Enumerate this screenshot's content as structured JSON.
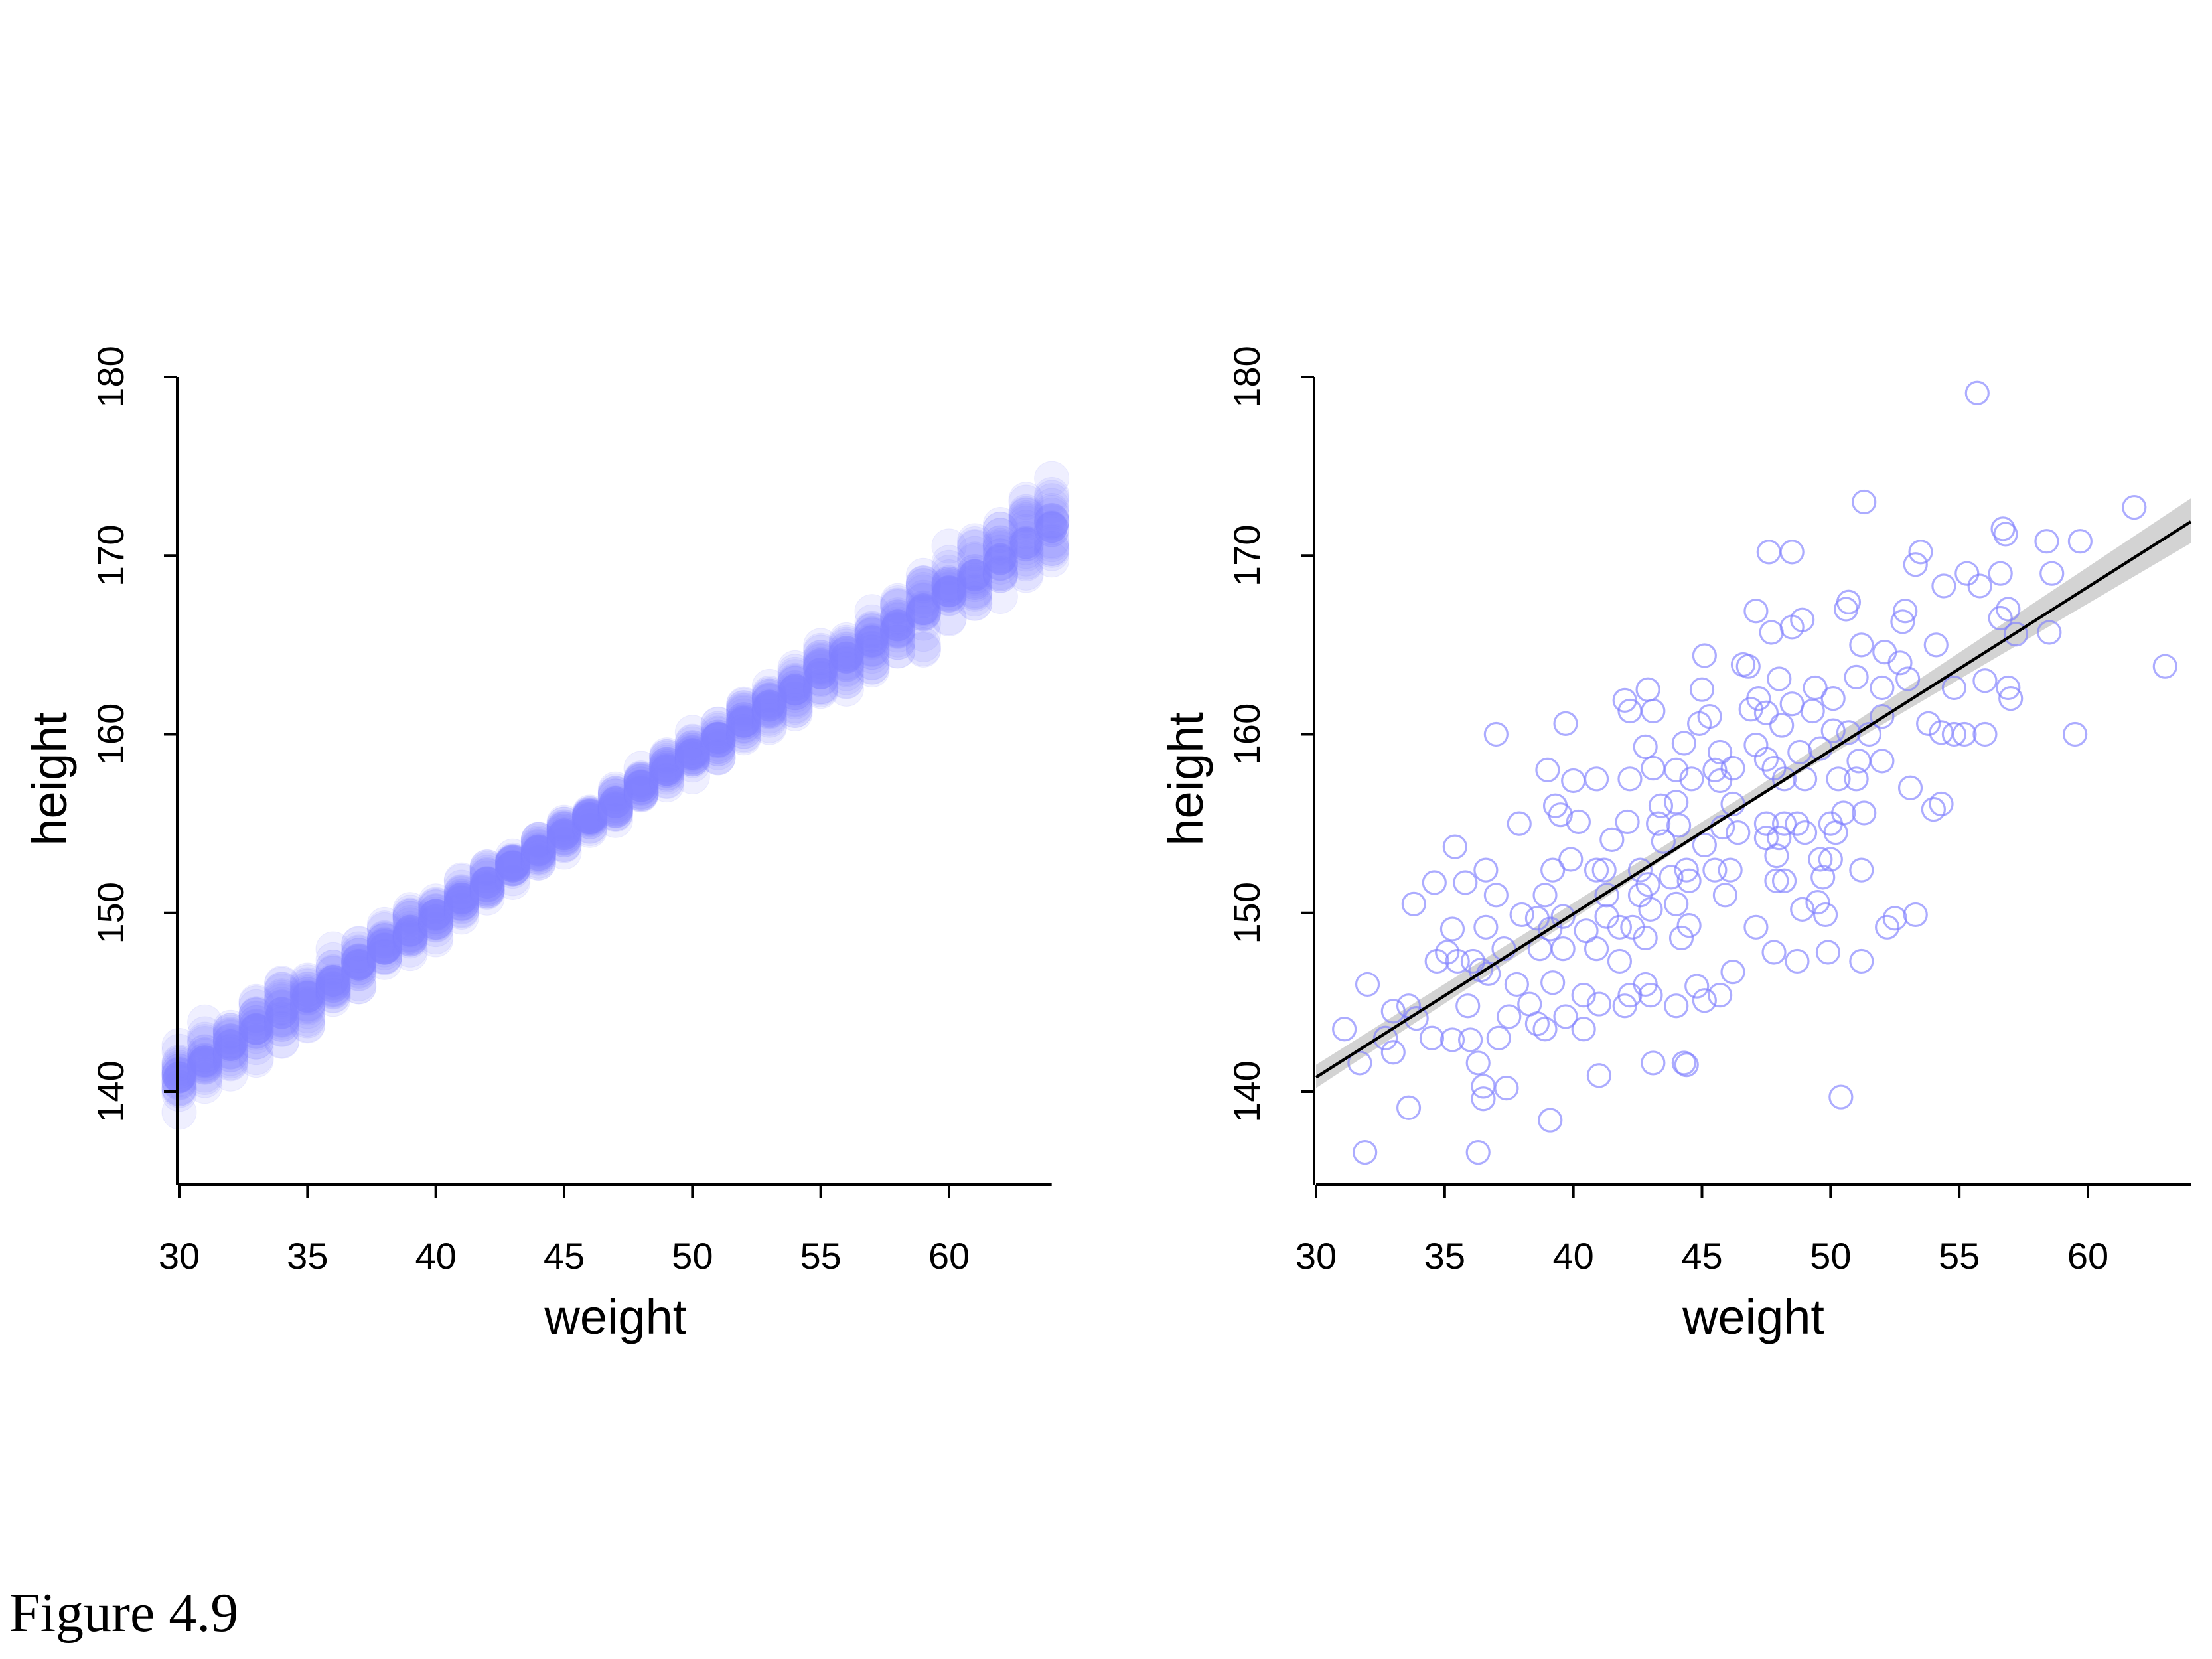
{
  "caption": "Figure 4.9",
  "chart_data": [
    {
      "type": "scatter",
      "variant": "posterior-mean-distribution",
      "xlabel": "weight",
      "ylabel": "height",
      "xlim": [
        30,
        64
      ],
      "ylim": [
        135,
        181
      ],
      "xticks": [
        30,
        35,
        40,
        45,
        50,
        55,
        60
      ],
      "yticks": [
        140,
        150,
        160,
        170,
        180
      ],
      "marker_color": "#8080ff",
      "marker_style": "filled translucent circles",
      "weights": [
        30,
        31,
        32,
        33,
        34,
        35,
        36,
        37,
        38,
        39,
        40,
        41,
        42,
        43,
        44,
        45,
        46,
        47,
        48,
        49,
        50,
        51,
        52,
        53,
        54,
        55,
        56,
        57,
        58,
        59,
        60,
        61,
        62,
        63,
        64
      ],
      "mean_height": [
        140.8,
        141.7,
        142.6,
        143.5,
        144.4,
        145.3,
        146.2,
        147.1,
        148.0,
        149.0,
        149.9,
        150.8,
        151.7,
        152.6,
        153.5,
        154.4,
        155.3,
        156.2,
        157.1,
        158.0,
        158.9,
        159.8,
        160.7,
        161.6,
        162.5,
        163.4,
        164.3,
        165.2,
        166.1,
        167.0,
        168.0,
        168.9,
        169.8,
        170.7,
        171.6
      ],
      "spread": [
        1.5,
        1.4,
        1.3,
        1.2,
        1.1,
        1.0,
        0.95,
        0.9,
        0.8,
        0.75,
        0.7,
        0.65,
        0.6,
        0.55,
        0.55,
        0.55,
        0.55,
        0.6,
        0.6,
        0.65,
        0.7,
        0.75,
        0.8,
        0.85,
        0.9,
        1.0,
        1.05,
        1.1,
        1.2,
        1.3,
        1.4,
        1.5,
        1.6,
        1.7,
        1.8
      ]
    },
    {
      "type": "scatter",
      "variant": "raw-data-with-regression-line",
      "xlabel": "weight",
      "ylabel": "height",
      "xlim": [
        30,
        64
      ],
      "ylim": [
        135,
        181
      ],
      "xticks": [
        30,
        35,
        40,
        45,
        50,
        55,
        60
      ],
      "yticks": [
        140,
        150,
        160,
        170,
        180
      ],
      "marker_color": "#8080ff",
      "marker_style": "open circles",
      "line": {
        "x": [
          30,
          64
        ],
        "y": [
          140.8,
          171.9
        ],
        "color": "#000000"
      },
      "band": {
        "color": "#d3d3d3",
        "x": [
          30,
          47,
          64
        ],
        "lower": [
          140.2,
          156.3,
          170.7
        ],
        "upper": [
          141.5,
          156.9,
          173.2
        ]
      },
      "points": [
        [
          55.7,
          179.1
        ],
        [
          51.3,
          173.0
        ],
        [
          61.8,
          172.7
        ],
        [
          56.8,
          171.2
        ],
        [
          56.7,
          171.5
        ],
        [
          59.7,
          170.8
        ],
        [
          58.4,
          170.8
        ],
        [
          47.6,
          170.2
        ],
        [
          48.5,
          170.2
        ],
        [
          53.5,
          170.2
        ],
        [
          53.3,
          169.5
        ],
        [
          56.6,
          169.0
        ],
        [
          55.3,
          169.0
        ],
        [
          58.6,
          169.0
        ],
        [
          54.4,
          168.3
        ],
        [
          55.8,
          168.3
        ],
        [
          56.6,
          166.5
        ],
        [
          56.9,
          167.0
        ],
        [
          50.7,
          167.4
        ],
        [
          50.6,
          167.0
        ],
        [
          52.9,
          166.9
        ],
        [
          47.1,
          166.9
        ],
        [
          48.9,
          166.4
        ],
        [
          48.5,
          166.0
        ],
        [
          52.8,
          166.3
        ],
        [
          47.7,
          165.7
        ],
        [
          57.2,
          165.6
        ],
        [
          58.5,
          165.7
        ],
        [
          51.2,
          165.0
        ],
        [
          54.1,
          165.0
        ],
        [
          52.1,
          164.6
        ],
        [
          45.1,
          164.4
        ],
        [
          46.6,
          163.9
        ],
        [
          46.8,
          163.8
        ],
        [
          52.7,
          164.0
        ],
        [
          53.0,
          163.1
        ],
        [
          48.0,
          163.1
        ],
        [
          51.0,
          163.2
        ],
        [
          56.0,
          163.0
        ],
        [
          63.0,
          163.8
        ],
        [
          56.9,
          162.6
        ],
        [
          54.8,
          162.6
        ],
        [
          52.0,
          162.6
        ],
        [
          49.4,
          162.6
        ],
        [
          45.0,
          162.5
        ],
        [
          42.9,
          162.5
        ],
        [
          47.2,
          162.0
        ],
        [
          50.1,
          162.0
        ],
        [
          48.5,
          161.7
        ],
        [
          42.0,
          161.9
        ],
        [
          57.0,
          162.0
        ],
        [
          52.0,
          161.0
        ],
        [
          46.9,
          161.4
        ],
        [
          42.2,
          161.3
        ],
        [
          43.1,
          161.3
        ],
        [
          47.5,
          161.2
        ],
        [
          49.3,
          161.3
        ],
        [
          45.3,
          161.0
        ],
        [
          48.1,
          160.5
        ],
        [
          44.9,
          160.6
        ],
        [
          50.7,
          160.1
        ],
        [
          50.1,
          160.2
        ],
        [
          53.8,
          160.6
        ],
        [
          55.2,
          160.0
        ],
        [
          59.5,
          160.0
        ],
        [
          54.8,
          160.0
        ],
        [
          56.0,
          160.0
        ],
        [
          54.3,
          160.1
        ],
        [
          51.5,
          160.0
        ],
        [
          37.0,
          160.0
        ],
        [
          39.7,
          160.6
        ],
        [
          44.3,
          159.5
        ],
        [
          45.7,
          159.0
        ],
        [
          48.8,
          159.0
        ],
        [
          49.6,
          159.2
        ],
        [
          47.1,
          159.4
        ],
        [
          42.8,
          159.3
        ],
        [
          47.5,
          158.6
        ],
        [
          52.0,
          158.5
        ],
        [
          51.1,
          158.5
        ],
        [
          47.8,
          158.1
        ],
        [
          44.0,
          158.0
        ],
        [
          45.5,
          158.0
        ],
        [
          46.2,
          158.1
        ],
        [
          43.1,
          158.1
        ],
        [
          39.0,
          158.0
        ],
        [
          50.3,
          157.5
        ],
        [
          48.2,
          157.5
        ],
        [
          49.0,
          157.5
        ],
        [
          51.0,
          157.5
        ],
        [
          44.6,
          157.5
        ],
        [
          45.7,
          157.4
        ],
        [
          42.2,
          157.5
        ],
        [
          40.0,
          157.4
        ],
        [
          40.9,
          157.5
        ],
        [
          53.1,
          157.0
        ],
        [
          54.3,
          156.1
        ],
        [
          54.0,
          155.8
        ],
        [
          51.3,
          155.6
        ],
        [
          50.5,
          155.6
        ],
        [
          46.2,
          156.1
        ],
        [
          43.4,
          156.0
        ],
        [
          44.0,
          156.2
        ],
        [
          39.3,
          156.0
        ],
        [
          40.2,
          155.1
        ],
        [
          39.5,
          155.5
        ],
        [
          42.1,
          155.1
        ],
        [
          43.3,
          155.0
        ],
        [
          47.5,
          155.0
        ],
        [
          48.2,
          155.0
        ],
        [
          48.7,
          155.0
        ],
        [
          50.0,
          155.0
        ],
        [
          45.8,
          154.8
        ],
        [
          46.4,
          154.5
        ],
        [
          44.1,
          154.9
        ],
        [
          48.0,
          154.2
        ],
        [
          47.5,
          154.2
        ],
        [
          49.0,
          154.5
        ],
        [
          50.2,
          154.5
        ],
        [
          37.9,
          155.0
        ],
        [
          35.4,
          153.7
        ],
        [
          41.5,
          154.1
        ],
        [
          43.5,
          154.0
        ],
        [
          45.1,
          153.8
        ],
        [
          49.6,
          153.0
        ],
        [
          50.0,
          153.0
        ],
        [
          47.9,
          153.2
        ],
        [
          39.9,
          153.0
        ],
        [
          40.9,
          152.4
        ],
        [
          42.6,
          152.4
        ],
        [
          44.4,
          152.4
        ],
        [
          45.5,
          152.4
        ],
        [
          36.6,
          152.4
        ],
        [
          39.2,
          152.4
        ],
        [
          41.2,
          152.4
        ],
        [
          51.2,
          152.4
        ],
        [
          49.7,
          152.0
        ],
        [
          46.1,
          152.4
        ],
        [
          43.8,
          152.0
        ],
        [
          44.5,
          151.8
        ],
        [
          48.2,
          151.8
        ],
        [
          47.9,
          151.8
        ],
        [
          42.9,
          151.6
        ],
        [
          42.6,
          151.0
        ],
        [
          45.9,
          151.0
        ],
        [
          37.0,
          151.0
        ],
        [
          35.8,
          151.7
        ],
        [
          34.6,
          151.7
        ],
        [
          38.9,
          151.0
        ],
        [
          41.3,
          151.0
        ],
        [
          49.5,
          150.6
        ],
        [
          48.9,
          150.2
        ],
        [
          44.0,
          150.5
        ],
        [
          43.0,
          150.2
        ],
        [
          33.8,
          150.5
        ],
        [
          41.3,
          149.8
        ],
        [
          38.6,
          149.7
        ],
        [
          38.0,
          149.9
        ],
        [
          39.6,
          149.8
        ],
        [
          41.8,
          149.2
        ],
        [
          42.3,
          149.2
        ],
        [
          44.5,
          149.3
        ],
        [
          47.1,
          149.2
        ],
        [
          49.8,
          149.9
        ],
        [
          52.5,
          149.7
        ],
        [
          53.3,
          149.9
        ],
        [
          52.2,
          149.2
        ],
        [
          36.6,
          149.2
        ],
        [
          35.3,
          149.1
        ],
        [
          39.1,
          149.1
        ],
        [
          40.5,
          149.0
        ],
        [
          42.8,
          148.6
        ],
        [
          44.2,
          148.6
        ],
        [
          40.9,
          148.0
        ],
        [
          39.6,
          148.0
        ],
        [
          38.7,
          148.0
        ],
        [
          37.3,
          148.0
        ],
        [
          35.1,
          147.8
        ],
        [
          35.5,
          147.3
        ],
        [
          36.1,
          147.3
        ],
        [
          41.8,
          147.3
        ],
        [
          47.8,
          147.8
        ],
        [
          49.9,
          147.8
        ],
        [
          46.2,
          146.7
        ],
        [
          48.7,
          147.3
        ],
        [
          51.2,
          147.3
        ],
        [
          34.7,
          147.3
        ],
        [
          36.7,
          146.6
        ],
        [
          37.8,
          146.0
        ],
        [
          36.4,
          146.8
        ],
        [
          42.8,
          146.0
        ],
        [
          39.2,
          146.1
        ],
        [
          40.4,
          145.4
        ],
        [
          42.2,
          145.4
        ],
        [
          44.8,
          145.9
        ],
        [
          45.7,
          145.4
        ],
        [
          43.0,
          145.4
        ],
        [
          41.0,
          144.9
        ],
        [
          38.3,
          144.9
        ],
        [
          35.9,
          144.8
        ],
        [
          33.0,
          144.5
        ],
        [
          33.9,
          144.1
        ],
        [
          37.5,
          144.2
        ],
        [
          39.7,
          144.2
        ],
        [
          42.0,
          144.8
        ],
        [
          45.1,
          145.1
        ],
        [
          44.0,
          144.8
        ],
        [
          38.6,
          143.8
        ],
        [
          38.9,
          143.5
        ],
        [
          40.4,
          143.5
        ],
        [
          31.1,
          143.5
        ],
        [
          33.6,
          144.8
        ],
        [
          34.5,
          143.0
        ],
        [
          35.3,
          142.9
        ],
        [
          32.7,
          143.0
        ],
        [
          36.0,
          142.9
        ],
        [
          33.0,
          142.2
        ],
        [
          31.7,
          141.6
        ],
        [
          37.1,
          143.0
        ],
        [
          43.1,
          141.6
        ],
        [
          44.3,
          141.6
        ],
        [
          44.4,
          141.5
        ],
        [
          36.3,
          141.6
        ],
        [
          41.0,
          140.9
        ],
        [
          32.0,
          146.0
        ],
        [
          37.4,
          140.2
        ],
        [
          36.5,
          140.3
        ],
        [
          36.5,
          139.6
        ],
        [
          50.4,
          139.7
        ],
        [
          33.6,
          139.1
        ],
        [
          39.1,
          138.4
        ],
        [
          31.9,
          136.6
        ],
        [
          36.3,
          136.6
        ]
      ]
    }
  ]
}
